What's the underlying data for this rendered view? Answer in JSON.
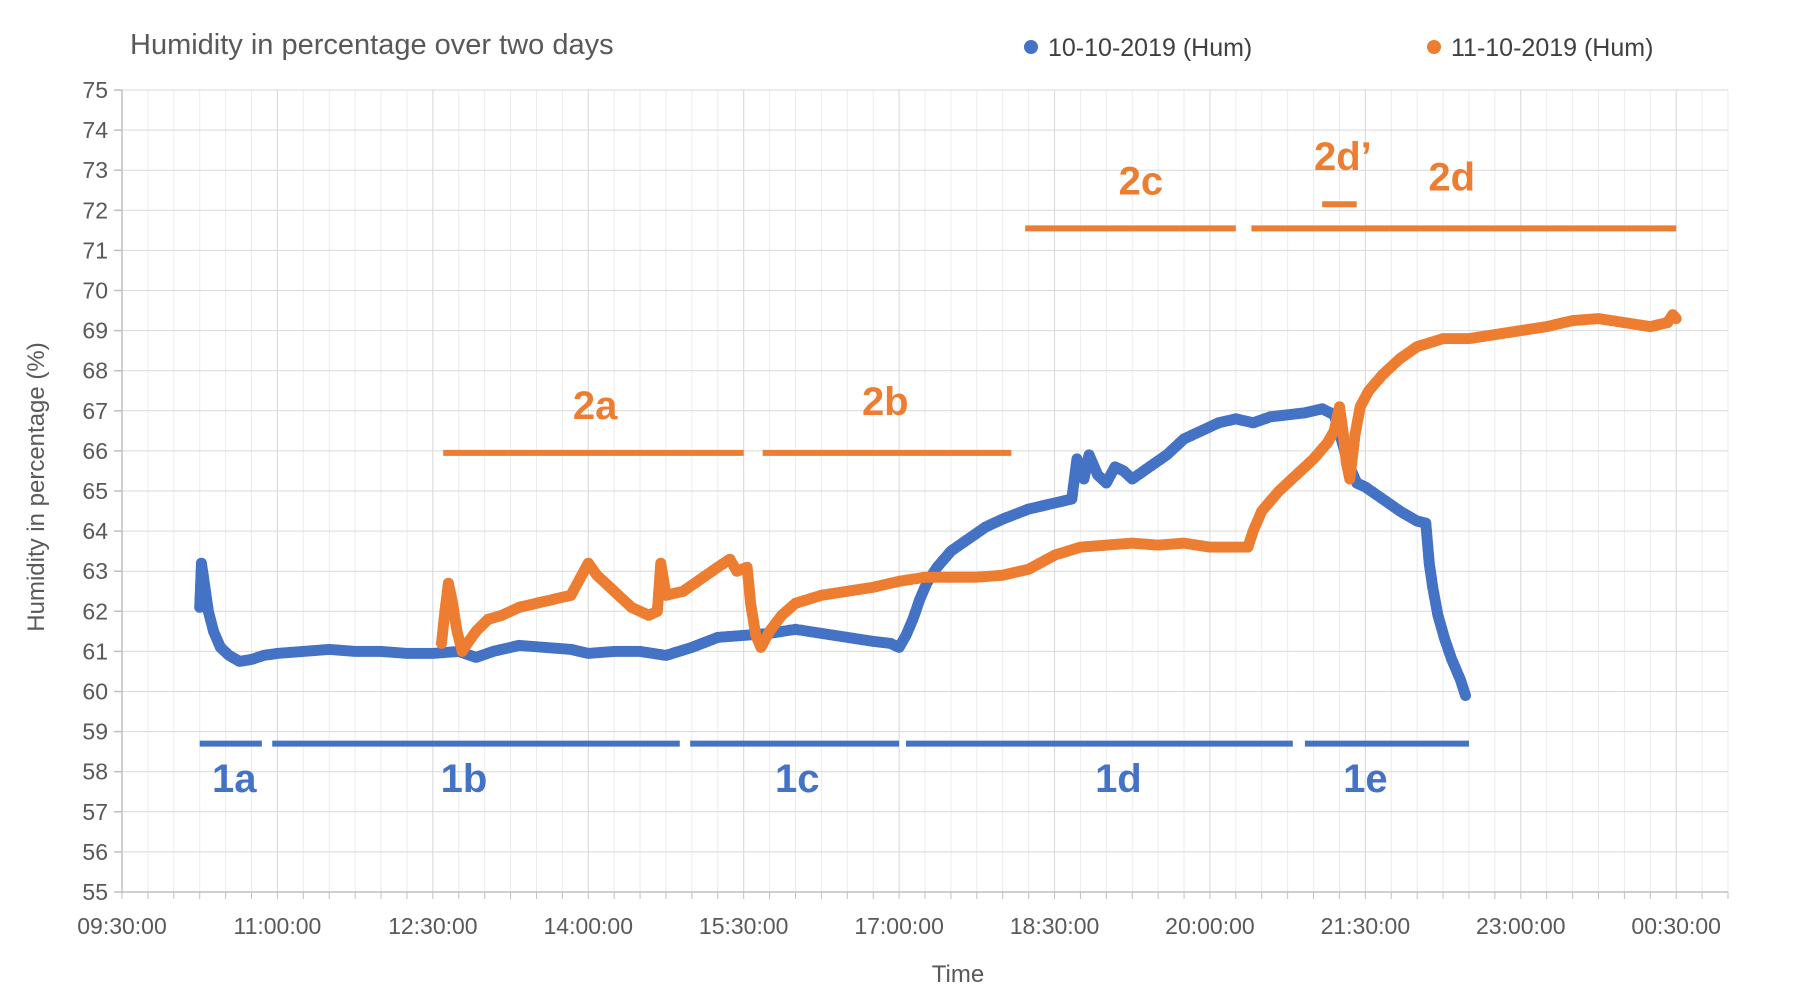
{
  "chart_data": {
    "type": "scatter",
    "title": "Humidity in percentage over two days",
    "xlabel": "Time",
    "ylabel": "Humidity in percentage (%)",
    "x_range": [
      "09:30:00",
      "01:00:00"
    ],
    "x_ticks": [
      "09:30:00",
      "11:00:00",
      "12:30:00",
      "14:00:00",
      "15:30:00",
      "17:00:00",
      "18:30:00",
      "20:00:00",
      "21:30:00",
      "23:00:00",
      "00:30:00"
    ],
    "ylim": [
      55,
      75
    ],
    "y_ticks": [
      "55",
      "56",
      "57",
      "58",
      "59",
      "60",
      "61",
      "62",
      "63",
      "64",
      "65",
      "66",
      "67",
      "68",
      "69",
      "70",
      "71",
      "72",
      "73",
      "74",
      "75"
    ],
    "grid": true,
    "legend_position": "top-right",
    "colors": {
      "series1": "#4472C4",
      "series2": "#ED7D31"
    },
    "series": [
      {
        "name": "10-10-2019 (Hum)",
        "points": [
          [
            "10:15:00",
            62.1
          ],
          [
            "10:16:00",
            63.2
          ],
          [
            "10:18:00",
            62.6
          ],
          [
            "10:20:00",
            62.0
          ],
          [
            "10:23:00",
            61.5
          ],
          [
            "10:27:00",
            61.1
          ],
          [
            "10:32:00",
            60.9
          ],
          [
            "10:38:00",
            60.75
          ],
          [
            "10:45:00",
            60.8
          ],
          [
            "10:52:00",
            60.9
          ],
          [
            "11:00:00",
            60.95
          ],
          [
            "11:15:00",
            61.0
          ],
          [
            "11:30:00",
            61.05
          ],
          [
            "11:45:00",
            61.0
          ],
          [
            "12:00:00",
            61.0
          ],
          [
            "12:15:00",
            60.95
          ],
          [
            "12:30:00",
            60.95
          ],
          [
            "12:45:00",
            61.0
          ],
          [
            "12:55:00",
            60.85
          ],
          [
            "13:05:00",
            61.0
          ],
          [
            "13:20:00",
            61.15
          ],
          [
            "13:35:00",
            61.1
          ],
          [
            "13:50:00",
            61.05
          ],
          [
            "14:00:00",
            60.95
          ],
          [
            "14:15:00",
            61.0
          ],
          [
            "14:30:00",
            61.0
          ],
          [
            "14:45:00",
            60.9
          ],
          [
            "15:00:00",
            61.1
          ],
          [
            "15:15:00",
            61.35
          ],
          [
            "15:30:00",
            61.4
          ],
          [
            "15:45:00",
            61.45
          ],
          [
            "16:00:00",
            61.55
          ],
          [
            "16:15:00",
            61.45
          ],
          [
            "16:30:00",
            61.35
          ],
          [
            "16:45:00",
            61.25
          ],
          [
            "16:55:00",
            61.2
          ],
          [
            "17:00:00",
            61.1
          ],
          [
            "17:04:00",
            61.4
          ],
          [
            "17:08:00",
            61.8
          ],
          [
            "17:12:00",
            62.3
          ],
          [
            "17:16:00",
            62.7
          ],
          [
            "17:22:00",
            63.1
          ],
          [
            "17:30:00",
            63.5
          ],
          [
            "17:40:00",
            63.8
          ],
          [
            "17:50:00",
            64.1
          ],
          [
            "18:00:00",
            64.3
          ],
          [
            "18:15:00",
            64.55
          ],
          [
            "18:30:00",
            64.7
          ],
          [
            "18:40:00",
            64.8
          ],
          [
            "18:43:00",
            65.8
          ],
          [
            "18:47:00",
            65.3
          ],
          [
            "18:50:00",
            65.9
          ],
          [
            "18:55:00",
            65.4
          ],
          [
            "19:00:00",
            65.2
          ],
          [
            "19:05:00",
            65.6
          ],
          [
            "19:10:00",
            65.5
          ],
          [
            "19:15:00",
            65.3
          ],
          [
            "19:25:00",
            65.6
          ],
          [
            "19:35:00",
            65.9
          ],
          [
            "19:45:00",
            66.3
          ],
          [
            "19:55:00",
            66.5
          ],
          [
            "20:05:00",
            66.7
          ],
          [
            "20:15:00",
            66.8
          ],
          [
            "20:25:00",
            66.7
          ],
          [
            "20:35:00",
            66.85
          ],
          [
            "20:45:00",
            66.9
          ],
          [
            "20:55:00",
            66.95
          ],
          [
            "21:05:00",
            67.05
          ],
          [
            "21:12:00",
            66.9
          ],
          [
            "21:16:00",
            66.3
          ],
          [
            "21:20:00",
            65.7
          ],
          [
            "21:25:00",
            65.2
          ],
          [
            "21:30:00",
            65.1
          ],
          [
            "21:40:00",
            64.8
          ],
          [
            "21:50:00",
            64.5
          ],
          [
            "22:00:00",
            64.25
          ],
          [
            "22:05:00",
            64.2
          ],
          [
            "22:06:00",
            63.7
          ],
          [
            "22:07:00",
            63.2
          ],
          [
            "22:09:00",
            62.6
          ],
          [
            "22:12:00",
            61.9
          ],
          [
            "22:16:00",
            61.3
          ],
          [
            "22:20:00",
            60.8
          ],
          [
            "22:25:00",
            60.3
          ],
          [
            "22:28:00",
            59.9
          ]
        ]
      },
      {
        "name": "11-10-2019 (Hum)",
        "points": [
          [
            "12:35:00",
            61.2
          ],
          [
            "12:37:00",
            62.0
          ],
          [
            "12:39:00",
            62.7
          ],
          [
            "12:41:00",
            62.3
          ],
          [
            "12:44:00",
            61.5
          ],
          [
            "12:47:00",
            61.0
          ],
          [
            "12:50:00",
            61.2
          ],
          [
            "12:55:00",
            61.5
          ],
          [
            "13:02:00",
            61.8
          ],
          [
            "13:10:00",
            61.9
          ],
          [
            "13:20:00",
            62.1
          ],
          [
            "13:30:00",
            62.2
          ],
          [
            "13:40:00",
            62.3
          ],
          [
            "13:50:00",
            62.4
          ],
          [
            "13:55:00",
            62.8
          ],
          [
            "14:00:00",
            63.2
          ],
          [
            "14:05:00",
            62.9
          ],
          [
            "14:15:00",
            62.5
          ],
          [
            "14:25:00",
            62.1
          ],
          [
            "14:35:00",
            61.9
          ],
          [
            "14:40:00",
            62.0
          ],
          [
            "14:42:00",
            63.2
          ],
          [
            "14:45:00",
            62.4
          ],
          [
            "14:55:00",
            62.5
          ],
          [
            "15:05:00",
            62.8
          ],
          [
            "15:15:00",
            63.1
          ],
          [
            "15:22:00",
            63.3
          ],
          [
            "15:26:00",
            63.0
          ],
          [
            "15:32:00",
            63.1
          ],
          [
            "15:34:00",
            62.2
          ],
          [
            "15:37:00",
            61.4
          ],
          [
            "15:40:00",
            61.1
          ],
          [
            "15:45:00",
            61.5
          ],
          [
            "15:52:00",
            61.9
          ],
          [
            "16:00:00",
            62.2
          ],
          [
            "16:15:00",
            62.4
          ],
          [
            "16:30:00",
            62.5
          ],
          [
            "16:45:00",
            62.6
          ],
          [
            "17:00:00",
            62.75
          ],
          [
            "17:15:00",
            62.85
          ],
          [
            "17:30:00",
            62.85
          ],
          [
            "17:45:00",
            62.85
          ],
          [
            "18:00:00",
            62.9
          ],
          [
            "18:15:00",
            63.05
          ],
          [
            "18:30:00",
            63.4
          ],
          [
            "18:45:00",
            63.6
          ],
          [
            "19:00:00",
            63.65
          ],
          [
            "19:15:00",
            63.7
          ],
          [
            "19:30:00",
            63.65
          ],
          [
            "19:45:00",
            63.7
          ],
          [
            "20:00:00",
            63.6
          ],
          [
            "20:15:00",
            63.6
          ],
          [
            "20:22:00",
            63.6
          ],
          [
            "20:25:00",
            64.0
          ],
          [
            "20:30:00",
            64.5
          ],
          [
            "20:40:00",
            65.0
          ],
          [
            "20:50:00",
            65.4
          ],
          [
            "21:00:00",
            65.8
          ],
          [
            "21:08:00",
            66.2
          ],
          [
            "21:12:00",
            66.5
          ],
          [
            "21:15:00",
            67.1
          ],
          [
            "21:17:00",
            66.5
          ],
          [
            "21:19:00",
            65.7
          ],
          [
            "21:21:00",
            65.3
          ],
          [
            "21:24:00",
            66.4
          ],
          [
            "21:27:00",
            67.1
          ],
          [
            "21:32:00",
            67.5
          ],
          [
            "21:40:00",
            67.9
          ],
          [
            "21:50:00",
            68.3
          ],
          [
            "22:00:00",
            68.6
          ],
          [
            "22:15:00",
            68.8
          ],
          [
            "22:30:00",
            68.8
          ],
          [
            "22:45:00",
            68.9
          ],
          [
            "23:00:00",
            69.0
          ],
          [
            "23:15:00",
            69.1
          ],
          [
            "23:30:00",
            69.25
          ],
          [
            "23:45:00",
            69.3
          ],
          [
            "00:00:00",
            69.2
          ],
          [
            "00:15:00",
            69.1
          ],
          [
            "00:25:00",
            69.2
          ],
          [
            "00:28:00",
            69.4
          ],
          [
            "00:30:00",
            69.3
          ]
        ]
      }
    ],
    "annotations": [
      {
        "label": "1a",
        "series": "10-10-2019 (Hum)",
        "start": "10:15:00",
        "end": "10:51:00",
        "bar_y": 58.7,
        "text_x": "10:35:00",
        "text_y": 57.5
      },
      {
        "label": "1b",
        "series": "10-10-2019 (Hum)",
        "start": "10:57:00",
        "end": "14:53:00",
        "bar_y": 58.7,
        "text_x": "12:48:00",
        "text_y": 57.5
      },
      {
        "label": "1c",
        "series": "10-10-2019 (Hum)",
        "start": "14:59:00",
        "end": "17:00:00",
        "bar_y": 58.7,
        "text_x": "16:01:00",
        "text_y": 57.5
      },
      {
        "label": "1d",
        "series": "10-10-2019 (Hum)",
        "start": "17:04:00",
        "end": "20:48:00",
        "bar_y": 58.7,
        "text_x": "19:07:00",
        "text_y": 57.5
      },
      {
        "label": "1e",
        "series": "10-10-2019 (Hum)",
        "start": "20:55:00",
        "end": "22:30:00",
        "bar_y": 58.7,
        "text_x": "21:30:00",
        "text_y": 57.5
      },
      {
        "label": "2a",
        "series": "11-10-2019 (Hum)",
        "start": "12:36:00",
        "end": "15:30:00",
        "bar_y": 65.95,
        "text_x": "14:04:00",
        "text_y": 66.8
      },
      {
        "label": "2b",
        "series": "11-10-2019 (Hum)",
        "start": "15:41:00",
        "end": "18:05:00",
        "bar_y": 65.95,
        "text_x": "16:52:00",
        "text_y": 66.9
      },
      {
        "label": "2c",
        "series": "11-10-2019 (Hum)",
        "start": "18:13:00",
        "end": "20:15:00",
        "bar_y": 71.55,
        "text_x": "19:20:00",
        "text_y": 72.4
      },
      {
        "label": "2d",
        "series": "11-10-2019 (Hum)",
        "start": "20:24:00",
        "end": "00:30:00",
        "bar_y": 71.55,
        "text_x": "22:20:00",
        "text_y": 72.5
      },
      {
        "label": "2d’",
        "series": "11-10-2019 (Hum)",
        "start": "21:05:00",
        "end": "21:25:00",
        "bar_y": 72.15,
        "text_x": "21:17:00",
        "text_y": 73.0
      }
    ]
  }
}
